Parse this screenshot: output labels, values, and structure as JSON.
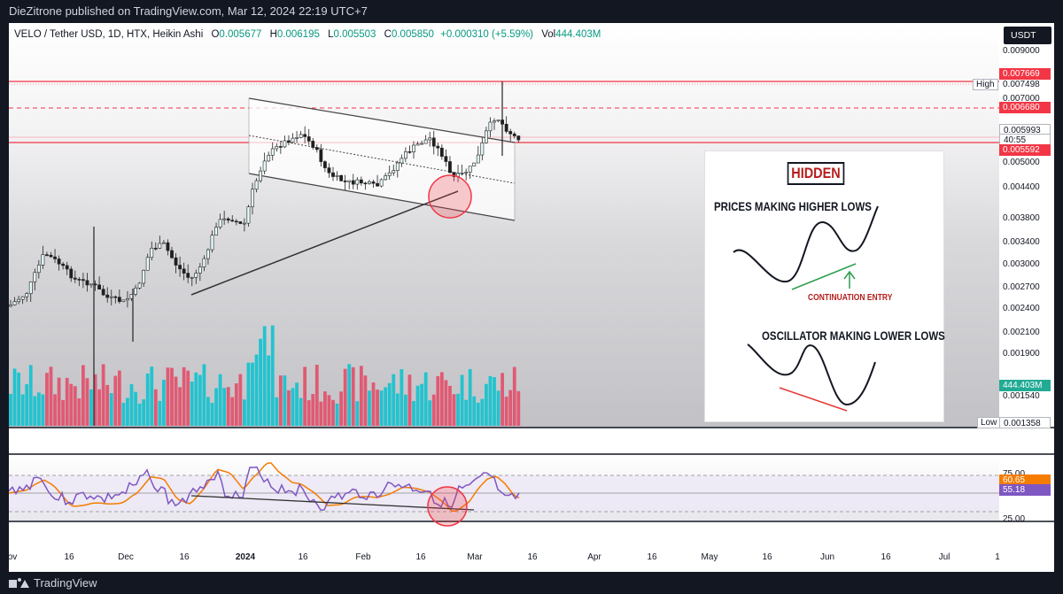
{
  "header": {
    "published_by": "DieZitrone published on TradingView.com, Mar 12, 2024 22:19 UTC+7"
  },
  "legend": {
    "symbol": "VELO / Tether USD, 1D, HTX, Heikin Ashi",
    "open_label": "O",
    "open": "0.005677",
    "high_label": "H",
    "high": "0.006195",
    "low_label": "L",
    "low": "0.005503",
    "close_label": "C",
    "close": "0.005850",
    "change": "+0.000310 (+5.59%)",
    "vol_label": "Vol",
    "vol": "444.403M"
  },
  "currency_button": "USDT",
  "price_axis": {
    "ticks": [
      "0.009000",
      "0.007498",
      "0.007000",
      "0.005993",
      "0.005000",
      "0.004400",
      "0.003800",
      "0.003400",
      "0.003000",
      "0.002700",
      "0.002400",
      "0.002100",
      "0.001900",
      "0.001540"
    ],
    "labels": {
      "upper_red": "0.007669",
      "mid_red": "0.006680",
      "current": "0.005993",
      "countdown": "40:55",
      "lower_red": "0.005592",
      "volume": "444.403M",
      "low_value": "0.001358"
    },
    "high_tag": "High",
    "low_tag": "Low"
  },
  "rsi_axis": {
    "upper_band": "75.00",
    "ma_value": "60.65",
    "rsi_value": "55.18",
    "lower_band": "25.00"
  },
  "time_axis": {
    "labels": [
      "ov",
      "16",
      "Dec",
      "16",
      "2024",
      "16",
      "Feb",
      "16",
      "Mar",
      "16",
      "Apr",
      "16",
      "May",
      "16",
      "Jun",
      "16",
      "Jul",
      "1"
    ]
  },
  "inset": {
    "title": "HIDDEN",
    "top_text": "PRICES MAKING HIGHER LOWS",
    "entry_text": "CONTINUATION ENTRY",
    "bottom_text": "OSCILLATOR MAKING LOWER LOWS"
  },
  "footer": {
    "brand": "TradingView"
  },
  "colors": {
    "bull": "#22c3cf",
    "bear": "#e05a73",
    "level_red": "#f23645",
    "rsi": "#7e57c2",
    "rsi_ma": "#f57c00"
  }
}
